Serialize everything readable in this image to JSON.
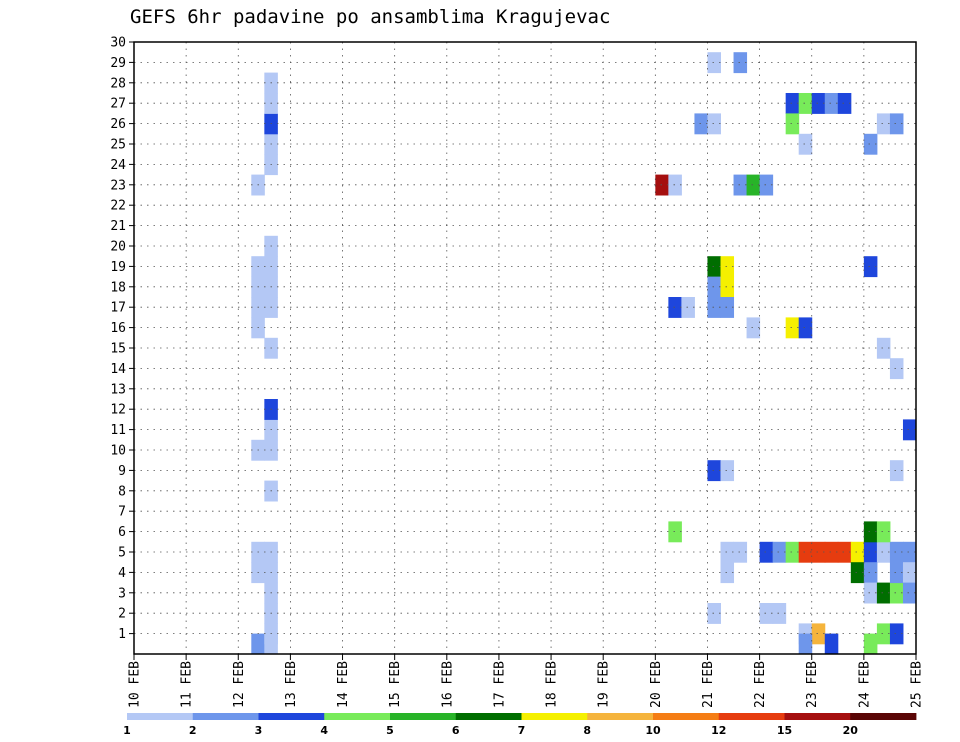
{
  "chart_data": {
    "type": "heatmap",
    "title": "GEFS 6hr padavine po ansamblima Kragujevac",
    "x_labels": [
      "10 FEB",
      "11 FEB",
      "12 FEB",
      "13 FEB",
      "14 FEB",
      "15 FEB",
      "16 FEB",
      "17 FEB",
      "18 FEB",
      "19 FEB",
      "20 FEB",
      "21 FEB",
      "22 FEB",
      "23 FEB",
      "24 FEB",
      "25 FEB"
    ],
    "y_labels": [
      "1",
      "2",
      "3",
      "4",
      "5",
      "6",
      "7",
      "8",
      "9",
      "10",
      "11",
      "12",
      "13",
      "14",
      "15",
      "16",
      "17",
      "18",
      "19",
      "20",
      "21",
      "22",
      "23",
      "24",
      "25",
      "26",
      "27",
      "28",
      "29",
      "30"
    ],
    "xlim": [
      0,
      15
    ],
    "ylim": [
      0,
      30
    ],
    "grid": true,
    "colorbar_levels": [
      "1",
      "2",
      "3",
      "4",
      "5",
      "6",
      "7",
      "8",
      "10",
      "12",
      "15",
      "20"
    ],
    "colorbar_colors": [
      "#b4c8f5",
      "#6e96eb",
      "#1e46dc",
      "#78eb5a",
      "#28b428",
      "#006e00",
      "#f5f000",
      "#f5b43c",
      "#f57d14",
      "#e63c0f",
      "#a50f0f",
      "#5a0505"
    ],
    "cells": [
      {
        "x": 2.25,
        "y": 0,
        "c": 1
      },
      {
        "x": 2.5,
        "y": 0,
        "c": 0
      },
      {
        "x": 2.5,
        "y": 1,
        "c": 0
      },
      {
        "x": 2.5,
        "y": 2,
        "c": 0
      },
      {
        "x": 2.5,
        "y": 3,
        "c": 0
      },
      {
        "x": 2.5,
        "y": 4,
        "c": 0
      },
      {
        "x": 2.25,
        "y": 4,
        "c": 0
      },
      {
        "x": 2.25,
        "y": 5,
        "c": 0
      },
      {
        "x": 2.5,
        "y": 5,
        "c": 0
      },
      {
        "x": 2.5,
        "y": 8,
        "c": 0
      },
      {
        "x": 2.25,
        "y": 10,
        "c": 0
      },
      {
        "x": 2.5,
        "y": 10,
        "c": 0
      },
      {
        "x": 2.5,
        "y": 11,
        "c": 0
      },
      {
        "x": 2.5,
        "y": 12,
        "c": 2
      },
      {
        "x": 2.5,
        "y": 15,
        "c": 0
      },
      {
        "x": 2.25,
        "y": 16,
        "c": 0
      },
      {
        "x": 2.25,
        "y": 17,
        "c": 0
      },
      {
        "x": 2.5,
        "y": 17,
        "c": 0
      },
      {
        "x": 2.25,
        "y": 18,
        "c": 0
      },
      {
        "x": 2.5,
        "y": 18,
        "c": 0
      },
      {
        "x": 2.25,
        "y": 19,
        "c": 0
      },
      {
        "x": 2.5,
        "y": 19,
        "c": 0
      },
      {
        "x": 2.5,
        "y": 20,
        "c": 0
      },
      {
        "x": 2.25,
        "y": 23,
        "c": 0
      },
      {
        "x": 2.5,
        "y": 24,
        "c": 0
      },
      {
        "x": 2.5,
        "y": 25,
        "c": 0
      },
      {
        "x": 2.5,
        "y": 26,
        "c": 2
      },
      {
        "x": 2.5,
        "y": 27,
        "c": 0
      },
      {
        "x": 2.5,
        "y": 28,
        "c": 0
      },
      {
        "x": 10.0,
        "y": 23,
        "c": 10
      },
      {
        "x": 10.25,
        "y": 23,
        "c": 0
      },
      {
        "x": 10.25,
        "y": 17,
        "c": 2
      },
      {
        "x": 10.5,
        "y": 17,
        "c": 0
      },
      {
        "x": 10.25,
        "y": 6,
        "c": 3
      },
      {
        "x": 11.0,
        "y": 29,
        "c": 0
      },
      {
        "x": 11.5,
        "y": 29,
        "c": 1
      },
      {
        "x": 10.75,
        "y": 26,
        "c": 1
      },
      {
        "x": 11.0,
        "y": 26,
        "c": 0
      },
      {
        "x": 11.0,
        "y": 19,
        "c": 5
      },
      {
        "x": 11.25,
        "y": 19,
        "c": 6
      },
      {
        "x": 11.0,
        "y": 18,
        "c": 1
      },
      {
        "x": 11.25,
        "y": 18,
        "c": 6
      },
      {
        "x": 11.0,
        "y": 17,
        "c": 1
      },
      {
        "x": 11.25,
        "y": 17,
        "c": 1
      },
      {
        "x": 11.0,
        "y": 9,
        "c": 2
      },
      {
        "x": 11.25,
        "y": 9,
        "c": 0
      },
      {
        "x": 11.25,
        "y": 5,
        "c": 0
      },
      {
        "x": 11.5,
        "y": 5,
        "c": 0
      },
      {
        "x": 11.25,
        "y": 4,
        "c": 0
      },
      {
        "x": 11.0,
        "y": 2,
        "c": 0
      },
      {
        "x": 11.5,
        "y": 23,
        "c": 1
      },
      {
        "x": 11.75,
        "y": 23,
        "c": 4
      },
      {
        "x": 12.0,
        "y": 23,
        "c": 1
      },
      {
        "x": 11.75,
        "y": 16,
        "c": 0
      },
      {
        "x": 12.0,
        "y": 2,
        "c": 0
      },
      {
        "x": 12.25,
        "y": 2,
        "c": 0
      },
      {
        "x": 12.5,
        "y": 27,
        "c": 2
      },
      {
        "x": 12.75,
        "y": 27,
        "c": 3
      },
      {
        "x": 13.0,
        "y": 27,
        "c": 2
      },
      {
        "x": 13.25,
        "y": 27,
        "c": 1
      },
      {
        "x": 13.5,
        "y": 27,
        "c": 2
      },
      {
        "x": 12.5,
        "y": 26,
        "c": 3
      },
      {
        "x": 12.75,
        "y": 25,
        "c": 0
      },
      {
        "x": 12.5,
        "y": 16,
        "c": 6
      },
      {
        "x": 12.75,
        "y": 16,
        "c": 2
      },
      {
        "x": 12.0,
        "y": 5,
        "c": 2
      },
      {
        "x": 12.25,
        "y": 5,
        "c": 1
      },
      {
        "x": 12.5,
        "y": 5,
        "c": 3
      },
      {
        "x": 12.75,
        "y": 5,
        "c": 9
      },
      {
        "x": 13.0,
        "y": 5,
        "c": 9
      },
      {
        "x": 13.25,
        "y": 5,
        "c": 9
      },
      {
        "x": 13.5,
        "y": 5,
        "c": 9
      },
      {
        "x": 13.75,
        "y": 5,
        "c": 6
      },
      {
        "x": 14.0,
        "y": 5,
        "c": 2
      },
      {
        "x": 14.25,
        "y": 5,
        "c": 0
      },
      {
        "x": 14.5,
        "y": 5,
        "c": 1
      },
      {
        "x": 14.75,
        "y": 5,
        "c": 1
      },
      {
        "x": 12.75,
        "y": 1,
        "c": 0
      },
      {
        "x": 13.0,
        "y": 1,
        "c": 7
      },
      {
        "x": 12.75,
        "y": 0,
        "c": 1
      },
      {
        "x": 13.25,
        "y": -1,
        "c": 2
      },
      {
        "x": 13.75,
        "y": 4,
        "c": 5
      },
      {
        "x": 14.0,
        "y": 6,
        "c": 5
      },
      {
        "x": 14.25,
        "y": 6,
        "c": 3
      },
      {
        "x": 14.0,
        "y": 4,
        "c": 1
      },
      {
        "x": 14.0,
        "y": 3,
        "c": 0
      },
      {
        "x": 14.25,
        "y": 3,
        "c": 5
      },
      {
        "x": 14.5,
        "y": 3,
        "c": 3
      },
      {
        "x": 14.5,
        "y": 4,
        "c": 1
      },
      {
        "x": 14.75,
        "y": 4,
        "c": 0
      },
      {
        "x": 14.75,
        "y": 3,
        "c": 1
      },
      {
        "x": 14.25,
        "y": 1,
        "c": 3
      },
      {
        "x": 14.5,
        "y": 1,
        "c": 2
      },
      {
        "x": 14.0,
        "y": 0,
        "c": 3
      },
      {
        "x": 14.0,
        "y": 25,
        "c": 1
      },
      {
        "x": 14.25,
        "y": 26,
        "c": 0
      },
      {
        "x": 14.5,
        "y": 26,
        "c": 1
      },
      {
        "x": 14.0,
        "y": 19,
        "c": 2
      },
      {
        "x": 14.25,
        "y": 15,
        "c": 0
      },
      {
        "x": 14.5,
        "y": 14,
        "c": 0
      },
      {
        "x": 14.75,
        "y": 11,
        "c": 2
      },
      {
        "x": 14.5,
        "y": 9,
        "c": 0
      }
    ]
  }
}
